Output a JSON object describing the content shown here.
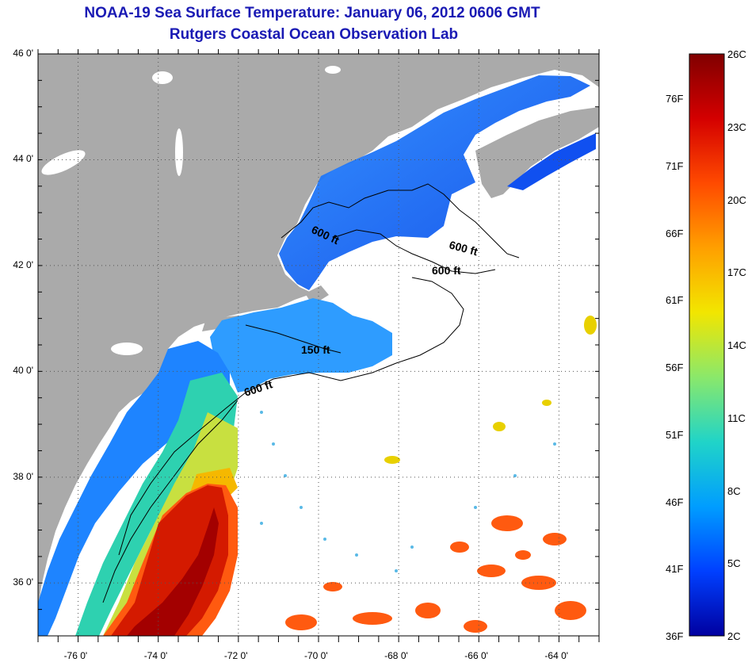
{
  "title": "NOAA-19 Sea Surface Temperature:  January 06, 2012 0606 GMT",
  "subtitle": "Rutgers Coastal Ocean Observation Lab",
  "map": {
    "lon_range": [
      -77,
      -63
    ],
    "lat_range": [
      35,
      46
    ],
    "lat_ticks": [
      {
        "value": 46,
        "label": "46 0'"
      },
      {
        "value": 44,
        "label": "44 0'"
      },
      {
        "value": 42,
        "label": "42 0'"
      },
      {
        "value": 40,
        "label": "40 0'"
      },
      {
        "value": 38,
        "label": "38 0'"
      },
      {
        "value": 36,
        "label": "36 0'"
      }
    ],
    "lon_ticks": [
      {
        "value": -76,
        "label": "-76 0'"
      },
      {
        "value": -74,
        "label": "-74 0'"
      },
      {
        "value": -72,
        "label": "-72 0'"
      },
      {
        "value": -70,
        "label": "-70 0'"
      },
      {
        "value": -68,
        "label": "-68 0'"
      },
      {
        "value": -66,
        "label": "-66 0'"
      },
      {
        "value": -64,
        "label": "-64 0'"
      }
    ],
    "contour_labels": [
      "600 ft",
      "600 ft",
      "600 ft",
      "150 ft",
      "600 ft"
    ],
    "colors": {
      "land": "#aaaaaa",
      "no_data": "#ffffff",
      "grid": "#555555"
    }
  },
  "colorbar": {
    "celsius_labels": [
      "26C",
      "23C",
      "20C",
      "17C",
      "14C",
      "11C",
      "8C",
      "5C",
      "2C"
    ],
    "fahrenheit_labels": [
      "76F",
      "71F",
      "66F",
      "61F",
      "56F",
      "51F",
      "46F",
      "41F",
      "36F"
    ],
    "stops": [
      "#800000",
      "#d40000",
      "#ff4a00",
      "#ff9f00",
      "#f2e600",
      "#8ae86b",
      "#20d4c8",
      "#009dff",
      "#0040ff",
      "#0000a0"
    ]
  }
}
